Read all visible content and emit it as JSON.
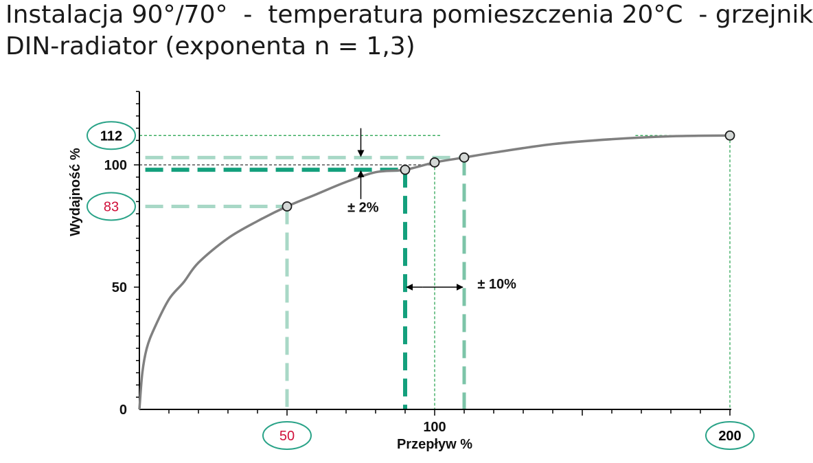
{
  "chart_data": {
    "type": "line",
    "title_line_1": "Instalacja 90°/70°  -  temperatura pomieszczenia 20°C  - grzejnik",
    "title_line_2": "DIN-radiator (exponenta n = 1,3)",
    "xlabel": "Przepływ %",
    "ylabel": "Wydajność %",
    "xlim": [
      0,
      200
    ],
    "ylim": [
      0,
      130
    ],
    "x_ticks": [
      {
        "value": 100,
        "label": "100"
      }
    ],
    "y_ticks": [
      {
        "value": 0,
        "label": "0"
      },
      {
        "value": 50,
        "label": "50"
      },
      {
        "value": 100,
        "label": "100"
      }
    ],
    "highlight_labels": [
      {
        "axis": "y",
        "value": 112,
        "label": "112",
        "color": "#000000"
      },
      {
        "axis": "y",
        "value": 83,
        "label": "83",
        "color": "#d0103a"
      },
      {
        "axis": "x",
        "value": 50,
        "label": "50",
        "color": "#d0103a"
      },
      {
        "axis": "x",
        "value": 200,
        "label": "200",
        "color": "#000000"
      }
    ],
    "series": [
      {
        "color": "#808080",
        "points": [
          {
            "x": 0,
            "y": 0
          },
          {
            "x": 1,
            "y": 15
          },
          {
            "x": 2.5,
            "y": 25
          },
          {
            "x": 5,
            "y": 33
          },
          {
            "x": 10,
            "y": 45
          },
          {
            "x": 15,
            "y": 52
          },
          {
            "x": 20,
            "y": 60
          },
          {
            "x": 30,
            "y": 70
          },
          {
            "x": 40,
            "y": 77
          },
          {
            "x": 50,
            "y": 83
          },
          {
            "x": 60,
            "y": 88
          },
          {
            "x": 70,
            "y": 93
          },
          {
            "x": 80,
            "y": 97
          },
          {
            "x": 90,
            "y": 98
          },
          {
            "x": 100,
            "y": 101
          },
          {
            "x": 110,
            "y": 103
          },
          {
            "x": 120,
            "y": 105
          },
          {
            "x": 140,
            "y": 108.5
          },
          {
            "x": 160,
            "y": 110.5
          },
          {
            "x": 180,
            "y": 111.7
          },
          {
            "x": 200,
            "y": 112
          }
        ]
      }
    ],
    "markers": [
      {
        "x": 50,
        "y": 83
      },
      {
        "x": 90,
        "y": 98
      },
      {
        "x": 100,
        "y": 101
      },
      {
        "x": 110,
        "y": 103
      },
      {
        "x": 200,
        "y": 112
      }
    ],
    "annotations": [
      {
        "label": "± 2%"
      },
      {
        "label": "± 10%"
      }
    ],
    "colors": {
      "dark_green": "#14a07d",
      "light_green": "#a8d8c6",
      "mid_green": "#7cc4a8",
      "thin_green": "#1a9e45",
      "badge_outline": "#2aa388",
      "curve": "#808080",
      "axis": "#000000"
    }
  }
}
